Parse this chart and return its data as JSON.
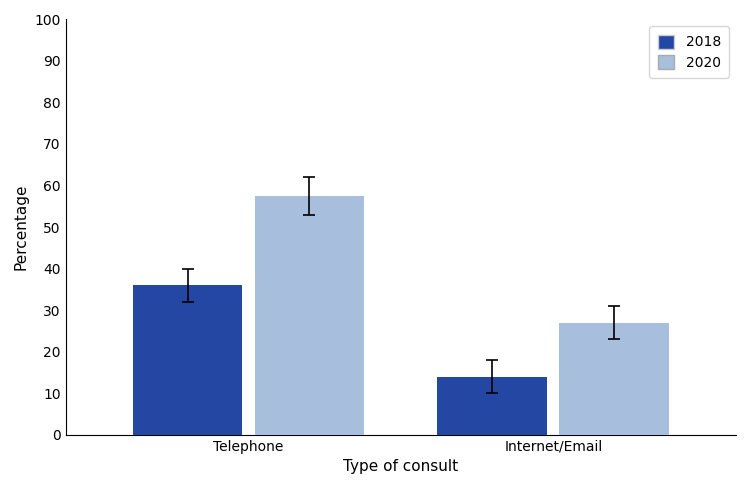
{
  "categories": [
    "Telephone",
    "Internet/Email"
  ],
  "values_2018": [
    36,
    14
  ],
  "values_2020": [
    57.5,
    27
  ],
  "errors_2018": [
    4,
    4
  ],
  "errors_2020": [
    4.5,
    4
  ],
  "color_2018": "#2347a3",
  "color_2020": "#a8bedd",
  "ylabel": "Percentage",
  "xlabel": "Type of consult",
  "ylim": [
    0,
    100
  ],
  "yticks": [
    0,
    10,
    20,
    30,
    40,
    50,
    60,
    70,
    80,
    90,
    100
  ],
  "legend_labels": [
    "2018",
    "2020"
  ],
  "bar_width": 0.18,
  "background_color": "#ffffff",
  "figsize": [
    7.5,
    4.88
  ],
  "dpi": 100
}
